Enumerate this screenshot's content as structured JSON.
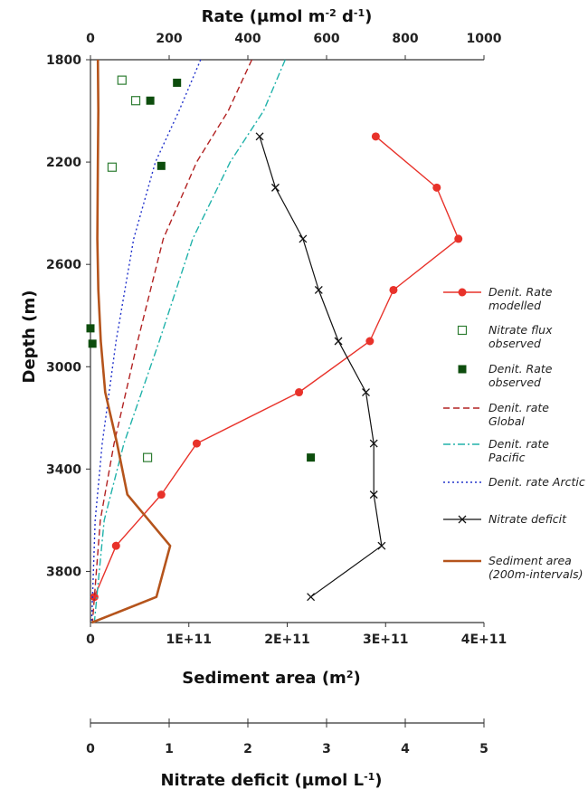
{
  "chart_data": {
    "type": "line",
    "axes": {
      "depth": {
        "label": "Depth (m)",
        "lim": [
          1800,
          4000
        ],
        "ticks": [
          1800,
          2200,
          2600,
          3000,
          3400,
          3800
        ],
        "inverted": true
      },
      "rate": {
        "label_main": "Rate (",
        "label_unit": "μmol m",
        "label_sup": "-2",
        "label_tail": " d",
        "label_sup2": "-1",
        "label_close": ")",
        "lim": [
          0,
          1000
        ],
        "ticks": [
          0,
          200,
          400,
          600,
          800,
          1000
        ]
      },
      "sediment": {
        "label_main": "Sediment area (m",
        "label_sup": "2",
        "label_close": ")",
        "lim": [
          0,
          400000000000
        ],
        "ticks": [
          0,
          100000000000,
          200000000000,
          300000000000,
          400000000000
        ],
        "tick_labels": [
          "0",
          "1E+11",
          "2E+11",
          "3E+11",
          "4E+11"
        ]
      },
      "deficit": {
        "label_main": "Nitrate deficit (μmol L",
        "label_sup": "-1",
        "label_close": ")",
        "lim": [
          0,
          5
        ],
        "ticks": [
          0,
          1,
          2,
          3,
          4,
          5
        ]
      }
    },
    "series": [
      {
        "name": "Denit. Rate modelled",
        "legend_lines": [
          "Denit. Rate",
          "modelled"
        ],
        "axis": "rate",
        "style": "line-circle",
        "color": "#e8322a",
        "points": [
          [
            725,
            2100
          ],
          [
            880,
            2300
          ],
          [
            935,
            2500
          ],
          [
            770,
            2700
          ],
          [
            710,
            2900
          ],
          [
            530,
            3100
          ],
          [
            270,
            3300
          ],
          [
            180,
            3500
          ],
          [
            65,
            3700
          ],
          [
            10,
            3900
          ]
        ]
      },
      {
        "name": "Nitrate flux observed",
        "legend_lines": [
          "Nitrate flux",
          "observed"
        ],
        "axis": "rate",
        "style": "open-square",
        "color": "#2e7d32",
        "points": [
          [
            80,
            1880
          ],
          [
            115,
            1960
          ],
          [
            55,
            2220
          ],
          [
            145,
            3355
          ]
        ]
      },
      {
        "name": "Denit. Rate observed",
        "legend_lines": [
          "Denit. Rate",
          "observed"
        ],
        "axis": "rate",
        "style": "filled-square",
        "color": "#0d4d0d",
        "points": [
          [
            220,
            1890
          ],
          [
            152,
            1960
          ],
          [
            180,
            2215
          ],
          [
            0,
            2850
          ],
          [
            5,
            2910
          ],
          [
            560,
            3355
          ]
        ]
      },
      {
        "name": "Denit. rate Global",
        "legend_lines": [
          "Denit. rate",
          "Global"
        ],
        "axis": "rate",
        "style": "dash",
        "color": "#b22222",
        "points": [
          [
            410,
            1800
          ],
          [
            350,
            2000
          ],
          [
            270,
            2200
          ],
          [
            185,
            2500
          ],
          [
            120,
            2900
          ],
          [
            60,
            3300
          ],
          [
            25,
            3600
          ],
          [
            5,
            4000
          ]
        ]
      },
      {
        "name": "Denit. rate Pacific",
        "legend_lines": [
          "Denit. rate",
          "Pacific"
        ],
        "axis": "rate",
        "style": "dashdot",
        "color": "#20b2aa",
        "points": [
          [
            495,
            1800
          ],
          [
            440,
            2000
          ],
          [
            355,
            2200
          ],
          [
            260,
            2500
          ],
          [
            175,
            2900
          ],
          [
            85,
            3300
          ],
          [
            35,
            3600
          ],
          [
            10,
            4000
          ]
        ]
      },
      {
        "name": "Denit. rate Arctic",
        "legend_lines": [
          "Denit. rate Arctic"
        ],
        "axis": "rate",
        "style": "dot",
        "color": "#2233cc",
        "points": [
          [
            280,
            1800
          ],
          [
            225,
            2000
          ],
          [
            165,
            2200
          ],
          [
            110,
            2500
          ],
          [
            65,
            2900
          ],
          [
            30,
            3300
          ],
          [
            12,
            3600
          ],
          [
            3,
            4000
          ]
        ]
      },
      {
        "name": "Nitrate deficit",
        "legend_lines": [
          "Nitrate deficit"
        ],
        "axis": "deficit",
        "style": "line-x",
        "color": "#111111",
        "points": [
          [
            2.15,
            2100
          ],
          [
            2.35,
            2300
          ],
          [
            2.7,
            2500
          ],
          [
            2.9,
            2700
          ],
          [
            3.15,
            2900
          ],
          [
            3.5,
            3100
          ],
          [
            3.6,
            3300
          ],
          [
            3.6,
            3500
          ],
          [
            3.7,
            3700
          ],
          [
            2.8,
            3900
          ]
        ]
      },
      {
        "name": "Sediment area (200m-intervals)",
        "legend_lines": [
          "Sediment area",
          "(200m-intervals)"
        ],
        "axis": "sediment",
        "style": "thick",
        "color": "#b5541c",
        "points": [
          [
            7500000000,
            1800
          ],
          [
            8000000000,
            2000
          ],
          [
            7500000000,
            2200
          ],
          [
            7000000000,
            2500
          ],
          [
            8000000000,
            2700
          ],
          [
            10500000000,
            2900
          ],
          [
            15000000000,
            3100
          ],
          [
            27000000000,
            3300
          ],
          [
            37500000000,
            3500
          ],
          [
            81000000000,
            3700
          ],
          [
            67000000000,
            3900
          ],
          [
            1500000000,
            4000
          ]
        ]
      }
    ]
  }
}
